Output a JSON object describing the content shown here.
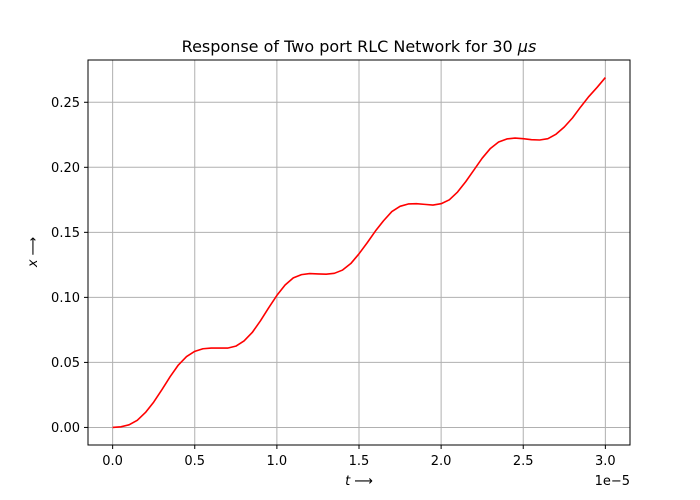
{
  "chart_data": {
    "type": "line",
    "title_text": "Response of Two port RLC Network for 30 ",
    "title_mu": "μs",
    "xlabel_var": "t",
    "ylabel_var": "x",
    "arrow": "⟶",
    "x_offset_label": "1e−5",
    "x_tick_values": [
      0.0,
      0.5,
      1.0,
      1.5,
      2.0,
      2.5,
      3.0
    ],
    "x_tick_labels": [
      "0.0",
      "0.5",
      "1.0",
      "1.5",
      "2.0",
      "2.5",
      "3.0"
    ],
    "y_tick_values": [
      0.0,
      0.05,
      0.1,
      0.15,
      0.2,
      0.25
    ],
    "y_tick_labels": [
      "0.00",
      "0.05",
      "0.10",
      "0.15",
      "0.20",
      "0.25"
    ],
    "xlim": [
      -0.15,
      3.15
    ],
    "ylim": [
      -0.0135,
      0.2825
    ],
    "grid": true,
    "line_color": "#ff0000",
    "grid_color": "#b0b0b0",
    "series": [
      {
        "x": [
          0.0,
          0.05,
          0.1,
          0.15,
          0.2,
          0.25,
          0.3,
          0.35,
          0.4,
          0.45,
          0.5,
          0.55,
          0.6,
          0.65,
          0.7,
          0.75,
          0.8,
          0.85,
          0.9,
          0.95,
          1.0,
          1.05,
          1.1,
          1.15,
          1.2,
          1.25,
          1.3,
          1.35,
          1.4,
          1.45,
          1.5,
          1.55,
          1.6,
          1.65,
          1.7,
          1.75,
          1.8,
          1.85,
          1.9,
          1.95,
          2.0,
          2.05,
          2.1,
          2.15,
          2.2,
          2.25,
          2.3,
          2.35,
          2.4,
          2.45,
          2.5,
          2.55,
          2.6,
          2.65,
          2.7,
          2.75,
          2.8,
          2.85,
          2.9,
          2.95,
          3.0
        ],
        "y": [
          0.0,
          0.0005,
          0.002,
          0.0055,
          0.0115,
          0.0195,
          0.029,
          0.039,
          0.048,
          0.0545,
          0.0585,
          0.0605,
          0.061,
          0.061,
          0.061,
          0.0625,
          0.0665,
          0.073,
          0.082,
          0.092,
          0.1015,
          0.1095,
          0.115,
          0.1175,
          0.1183,
          0.118,
          0.1178,
          0.1185,
          0.121,
          0.126,
          0.1335,
          0.142,
          0.151,
          0.159,
          0.166,
          0.17,
          0.1718,
          0.172,
          0.1715,
          0.171,
          0.172,
          0.175,
          0.181,
          0.189,
          0.198,
          0.207,
          0.2145,
          0.2195,
          0.2218,
          0.2225,
          0.222,
          0.2212,
          0.221,
          0.222,
          0.2255,
          0.231,
          0.238,
          0.2465,
          0.2545,
          0.2615,
          0.269
        ]
      }
    ]
  }
}
